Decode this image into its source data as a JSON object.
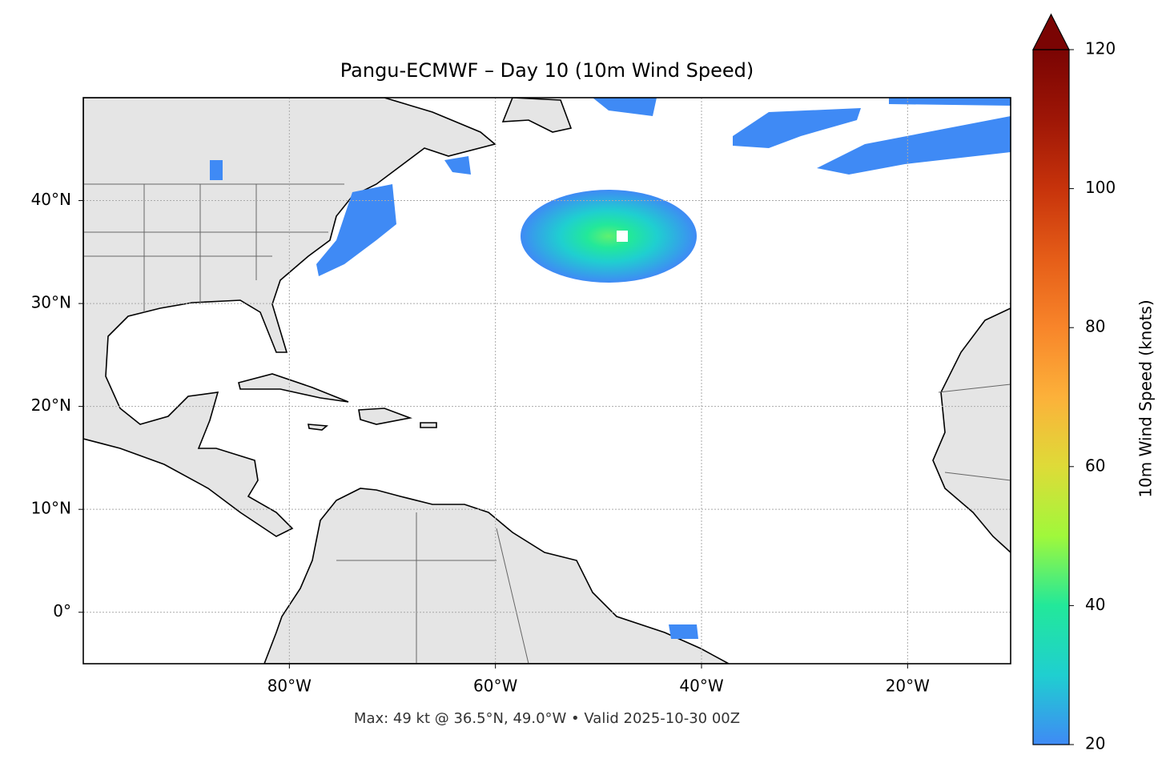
{
  "chart_data": {
    "type": "map",
    "title": "Pangu-ECMWF – Day 10 (10m Wind Speed)",
    "annotation": "Max: 49 kt @ 36.5°N, 49.0°W • Valid 2025-10-30 00Z",
    "xlim": [
      -100,
      -10
    ],
    "ylim": [
      -5,
      50
    ],
    "xticks": [
      {
        "value": -80,
        "label": "80°W"
      },
      {
        "value": -60,
        "label": "60°W"
      },
      {
        "value": -40,
        "label": "40°W"
      },
      {
        "value": -20,
        "label": "20°W"
      }
    ],
    "yticks": [
      {
        "value": 0,
        "label": "0°"
      },
      {
        "value": 10,
        "label": "10°N"
      },
      {
        "value": 20,
        "label": "20°N"
      },
      {
        "value": 30,
        "label": "30°N"
      },
      {
        "value": 40,
        "label": "40°N"
      }
    ],
    "grid": true,
    "colorbar": {
      "label": "10m Wind Speed (knots)",
      "lim": [
        20,
        120
      ],
      "ticks": [
        20,
        40,
        60,
        80,
        100,
        120
      ],
      "extend": "max",
      "colors": [
        "#3f8af5",
        "#1fcfd0",
        "#22e89a",
        "#a0f83b",
        "#dedb38",
        "#fcb13a",
        "#f8852a",
        "#e55d18",
        "#c7330b",
        "#9e1606",
        "#7a0403"
      ]
    }
  }
}
